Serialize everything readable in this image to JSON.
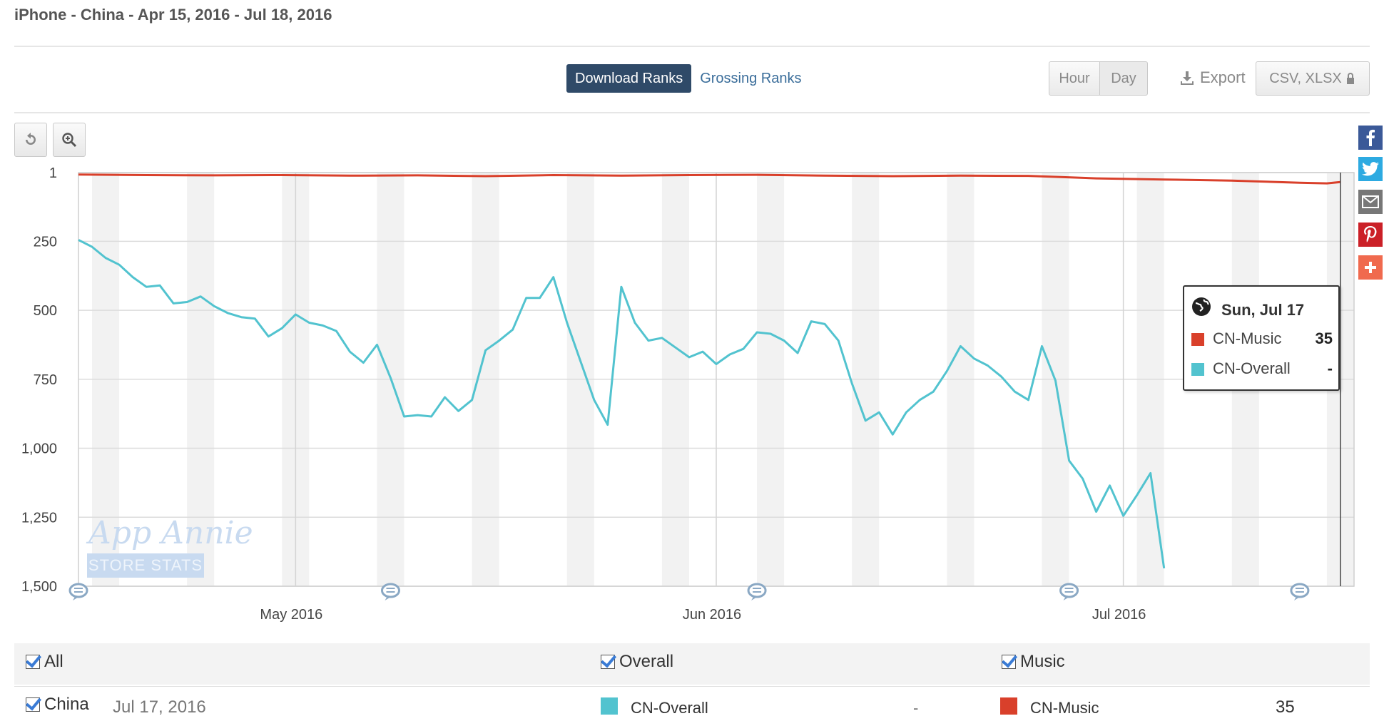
{
  "page": {
    "title": "iPhone - China - Apr 15, 2016 - Jul 18, 2016"
  },
  "tabs": {
    "download_ranks": "Download Ranks",
    "grossing_ranks": "Grossing Ranks"
  },
  "granularity": {
    "hour": "Hour",
    "day": "Day"
  },
  "export": {
    "label": "Export",
    "formats": "CSV, XLSX"
  },
  "colors": {
    "music": "#d9402b",
    "overall": "#52c3cf",
    "active_tab": "#2f4a68"
  },
  "icons": {
    "reset": "undo-icon",
    "zoom": "zoom-icon",
    "download": "download-icon",
    "lock": "lock-icon",
    "social": [
      "facebook-icon",
      "twitter-icon",
      "email-icon",
      "pinterest-icon",
      "plus-icon"
    ]
  },
  "watermark": {
    "line1": "App Annie",
    "line2": "STORE STATS"
  },
  "tooltip": {
    "date": "Sun, Jul 17",
    "rows": [
      {
        "label": "CN-Music",
        "value": "35"
      },
      {
        "label": "CN-Overall",
        "value": "-"
      }
    ]
  },
  "legend": {
    "header": {
      "all": "All",
      "overall": "Overall",
      "music": "Music"
    },
    "row": {
      "country": "China",
      "date": "Jul 17, 2016",
      "overall_label": "CN-Overall",
      "overall_value": "-",
      "music_label": "CN-Music",
      "music_value": "35"
    }
  },
  "chart_data": {
    "type": "line",
    "x_start": "2016-04-15",
    "x_end": "2016-07-18",
    "y_reversed": true,
    "ylim": [
      1,
      1500
    ],
    "y_ticks": [
      1,
      250,
      500,
      750,
      1000,
      1250,
      1500
    ],
    "y_tick_labels": [
      "1",
      "250",
      "500",
      "750",
      "1,000",
      "1,250",
      "1,500"
    ],
    "x_tick_labels": [
      "May 2016",
      "Jun 2016",
      "Jul 2016"
    ],
    "grid": true,
    "weekend_bands": true,
    "series": [
      {
        "name": "CN-Overall",
        "color": "#52c3cf",
        "points": [
          [
            "2016-04-15",
            245
          ],
          [
            "2016-04-16",
            270
          ],
          [
            "2016-04-17",
            310
          ],
          [
            "2016-04-18",
            335
          ],
          [
            "2016-04-19",
            380
          ],
          [
            "2016-04-20",
            415
          ],
          [
            "2016-04-21",
            410
          ],
          [
            "2016-04-22",
            475
          ],
          [
            "2016-04-23",
            470
          ],
          [
            "2016-04-24",
            450
          ],
          [
            "2016-04-25",
            485
          ],
          [
            "2016-04-26",
            510
          ],
          [
            "2016-04-27",
            525
          ],
          [
            "2016-04-28",
            530
          ],
          [
            "2016-04-29",
            595
          ],
          [
            "2016-04-30",
            565
          ],
          [
            "2016-05-01",
            515
          ],
          [
            "2016-05-02",
            545
          ],
          [
            "2016-05-03",
            555
          ],
          [
            "2016-05-04",
            575
          ],
          [
            "2016-05-05",
            650
          ],
          [
            "2016-05-06",
            690
          ],
          [
            "2016-05-07",
            625
          ],
          [
            "2016-05-08",
            745
          ],
          [
            "2016-05-09",
            885
          ],
          [
            "2016-05-10",
            880
          ],
          [
            "2016-05-11",
            885
          ],
          [
            "2016-05-12",
            815
          ],
          [
            "2016-05-13",
            865
          ],
          [
            "2016-05-14",
            825
          ],
          [
            "2016-05-15",
            645
          ],
          [
            "2016-05-16",
            610
          ],
          [
            "2016-05-17",
            570
          ],
          [
            "2016-05-18",
            455
          ],
          [
            "2016-05-19",
            455
          ],
          [
            "2016-05-20",
            380
          ],
          [
            "2016-05-21",
            545
          ],
          [
            "2016-05-22",
            685
          ],
          [
            "2016-05-23",
            825
          ],
          [
            "2016-05-24",
            915
          ],
          [
            "2016-05-25",
            415
          ],
          [
            "2016-05-26",
            545
          ],
          [
            "2016-05-27",
            610
          ],
          [
            "2016-05-28",
            600
          ],
          [
            "2016-05-29",
            635
          ],
          [
            "2016-05-30",
            670
          ],
          [
            "2016-05-31",
            650
          ],
          [
            "2016-06-01",
            695
          ],
          [
            "2016-06-02",
            660
          ],
          [
            "2016-06-03",
            640
          ],
          [
            "2016-06-04",
            580
          ],
          [
            "2016-06-05",
            585
          ],
          [
            "2016-06-06",
            610
          ],
          [
            "2016-06-07",
            655
          ],
          [
            "2016-06-08",
            540
          ],
          [
            "2016-06-09",
            550
          ],
          [
            "2016-06-10",
            610
          ],
          [
            "2016-06-11",
            765
          ],
          [
            "2016-06-12",
            900
          ],
          [
            "2016-06-13",
            870
          ],
          [
            "2016-06-14",
            950
          ],
          [
            "2016-06-15",
            870
          ],
          [
            "2016-06-16",
            825
          ],
          [
            "2016-06-17",
            795
          ],
          [
            "2016-06-18",
            720
          ],
          [
            "2016-06-19",
            630
          ],
          [
            "2016-06-20",
            675
          ],
          [
            "2016-06-21",
            700
          ],
          [
            "2016-06-22",
            740
          ],
          [
            "2016-06-23",
            795
          ],
          [
            "2016-06-24",
            825
          ],
          [
            "2016-06-25",
            630
          ],
          [
            "2016-06-26",
            755
          ],
          [
            "2016-06-27",
            1045
          ],
          [
            "2016-06-28",
            1110
          ],
          [
            "2016-06-29",
            1230
          ],
          [
            "2016-06-30",
            1135
          ],
          [
            "2016-07-01",
            1245
          ],
          [
            "2016-07-02",
            1170
          ],
          [
            "2016-07-03",
            1090
          ],
          [
            "2016-07-04",
            1435
          ]
        ]
      },
      {
        "name": "CN-Music",
        "color": "#d9402b",
        "points": [
          [
            "2016-04-15",
            8
          ],
          [
            "2016-04-20",
            10
          ],
          [
            "2016-04-25",
            11
          ],
          [
            "2016-04-30",
            10
          ],
          [
            "2016-05-05",
            12
          ],
          [
            "2016-05-10",
            11
          ],
          [
            "2016-05-15",
            14
          ],
          [
            "2016-05-20",
            10
          ],
          [
            "2016-05-25",
            12
          ],
          [
            "2016-05-30",
            10
          ],
          [
            "2016-06-04",
            9
          ],
          [
            "2016-06-09",
            12
          ],
          [
            "2016-06-14",
            14
          ],
          [
            "2016-06-19",
            12
          ],
          [
            "2016-06-24",
            13
          ],
          [
            "2016-06-29",
            22
          ],
          [
            "2016-07-04",
            26
          ],
          [
            "2016-07-09",
            30
          ],
          [
            "2016-07-14",
            38
          ],
          [
            "2016-07-16",
            40
          ],
          [
            "2016-07-17",
            35
          ]
        ]
      }
    ]
  }
}
